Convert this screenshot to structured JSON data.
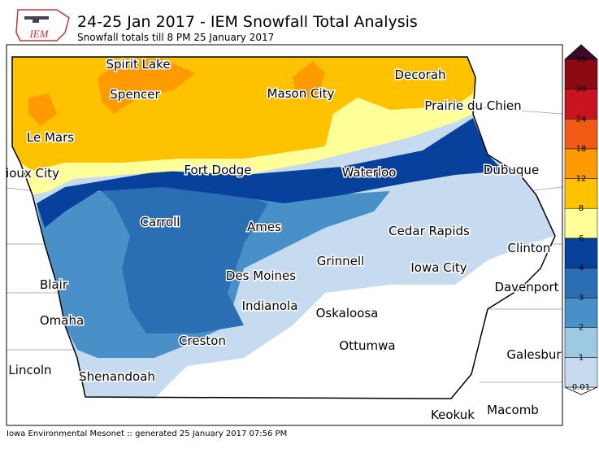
{
  "header": {
    "logo": "IEM",
    "title": "24-25 Jan 2017 - IEM Snowfall Total Analysis",
    "subtitle": "Snowfall totals till 8 PM 25 January 2017"
  },
  "cities": [
    "Spirit Lake",
    "Decorah",
    "Spencer",
    "Mason City",
    "Prairie du Chien",
    "Le Mars",
    "ioux City",
    "Fort Dodge",
    "Waterloo",
    "Dubuque",
    "Carroll",
    "Ames",
    "Cedar Rapids",
    "Clinton",
    "Grinnell",
    "Iowa City",
    "Blair",
    "Des Moines",
    "Davenport",
    "Indianola",
    "Oskaloosa",
    "Omaha",
    "Creston",
    "Ottumwa",
    "Galesbur",
    "Lincoln",
    "Shenandoah",
    "Keokuk",
    "Macomb"
  ],
  "colorbar": {
    "ticks": [
      0.01,
      1,
      2,
      3,
      4,
      6,
      8,
      12,
      18,
      24,
      30,
      36
    ],
    "colors": [
      "#c6dbef",
      "#9ecae1",
      "#4a90c8",
      "#2a6eb4",
      "#08419c",
      "#ffff99",
      "#ffc200",
      "#ff9a00",
      "#f05a14",
      "#c8141e",
      "#8c0a14"
    ],
    "under_color": "#ffffff",
    "over_color": "#3c0a2a"
  },
  "footer": "Iowa Environmental Mesonet :: generated 25 January 2017 07:56 PM"
}
